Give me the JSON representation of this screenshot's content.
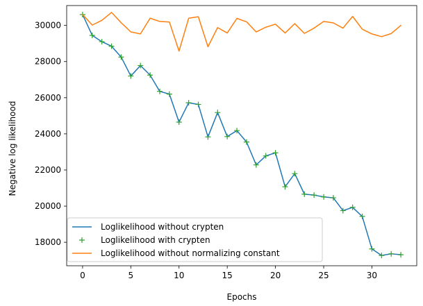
{
  "chart_data": {
    "type": "line",
    "title": "",
    "xlabel": "Epochs",
    "ylabel": "Negative log likelihood",
    "xlim": [
      -1.65,
      34.65
    ],
    "ylim": [
      16700,
      31100
    ],
    "xticks": [
      0,
      5,
      10,
      15,
      20,
      25,
      30
    ],
    "yticks": [
      18000,
      20000,
      22000,
      24000,
      26000,
      28000,
      30000
    ],
    "grid": false,
    "legend_position": "lower-left",
    "x": [
      0,
      1,
      2,
      3,
      4,
      5,
      6,
      7,
      8,
      9,
      10,
      11,
      12,
      13,
      14,
      15,
      16,
      17,
      18,
      19,
      20,
      21,
      22,
      23,
      24,
      25,
      26,
      27,
      28,
      29,
      30,
      31,
      32,
      33
    ],
    "series": [
      {
        "name": "Loglikelihood without crypten",
        "style": "line",
        "color": "#1f77b4",
        "values": [
          30600,
          29450,
          29100,
          28850,
          28250,
          27200,
          27780,
          27250,
          26350,
          26200,
          24650,
          25720,
          25630,
          23830,
          25180,
          23850,
          24180,
          23550,
          22280,
          22780,
          22950,
          21070,
          21800,
          20660,
          20610,
          20510,
          20460,
          19750,
          19930,
          19430,
          17630,
          17270,
          17360,
          17310
        ]
      },
      {
        "name": "Loglikelihood with crypten",
        "style": "marker-plus",
        "color": "#2ca02c",
        "values": [
          30600,
          29450,
          29100,
          28850,
          28250,
          27200,
          27780,
          27250,
          26350,
          26200,
          24650,
          25720,
          25630,
          23830,
          25180,
          23850,
          24180,
          23550,
          22280,
          22780,
          22950,
          21070,
          21800,
          20660,
          20610,
          20510,
          20460,
          19750,
          19930,
          19430,
          17630,
          17270,
          17360,
          17310
        ]
      },
      {
        "name": "Loglikelihood without normalizing constant",
        "style": "line",
        "color": "#ff7f0e",
        "values": [
          30600,
          30020,
          30280,
          30720,
          30150,
          29640,
          29530,
          30400,
          30220,
          30190,
          28580,
          30400,
          30480,
          28820,
          29880,
          29580,
          30390,
          30200,
          29640,
          29900,
          30070,
          29580,
          30100,
          29560,
          29850,
          30220,
          30140,
          29850,
          30500,
          29790,
          29530,
          29380,
          29550,
          30000
        ]
      }
    ]
  }
}
